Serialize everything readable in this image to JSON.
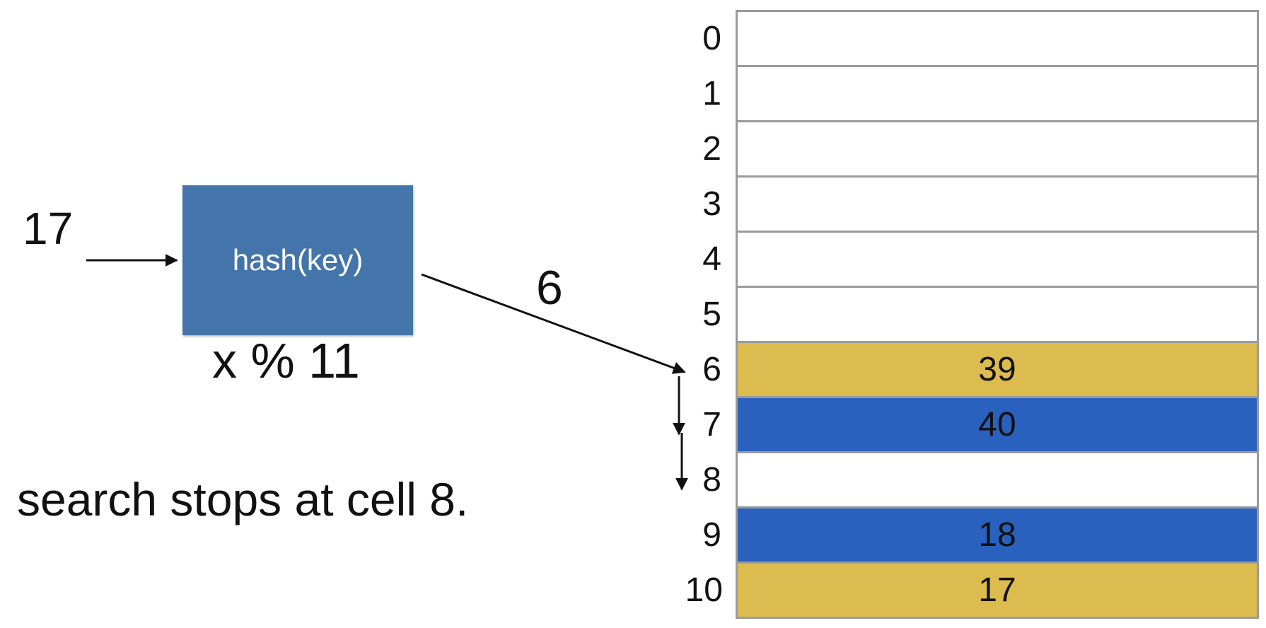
{
  "input_key": "17",
  "hash_function": {
    "label": "hash(key)",
    "formula": "x % 11"
  },
  "hash_output": "6",
  "caption": "search stops at cell 8.",
  "table": {
    "cells": [
      {
        "index": "0",
        "value": "",
        "color": "#ffffff"
      },
      {
        "index": "1",
        "value": "",
        "color": "#ffffff"
      },
      {
        "index": "2",
        "value": "",
        "color": "#ffffff"
      },
      {
        "index": "3",
        "value": "",
        "color": "#ffffff"
      },
      {
        "index": "4",
        "value": "",
        "color": "#ffffff"
      },
      {
        "index": "5",
        "value": "",
        "color": "#ffffff"
      },
      {
        "index": "6",
        "value": "39",
        "color": "#dcbb4f"
      },
      {
        "index": "7",
        "value": "40",
        "color": "#2a61be"
      },
      {
        "index": "8",
        "value": "",
        "color": "#ffffff"
      },
      {
        "index": "9",
        "value": "18",
        "color": "#2a61be"
      },
      {
        "index": "10",
        "value": "17",
        "color": "#dcbb4f"
      }
    ]
  }
}
